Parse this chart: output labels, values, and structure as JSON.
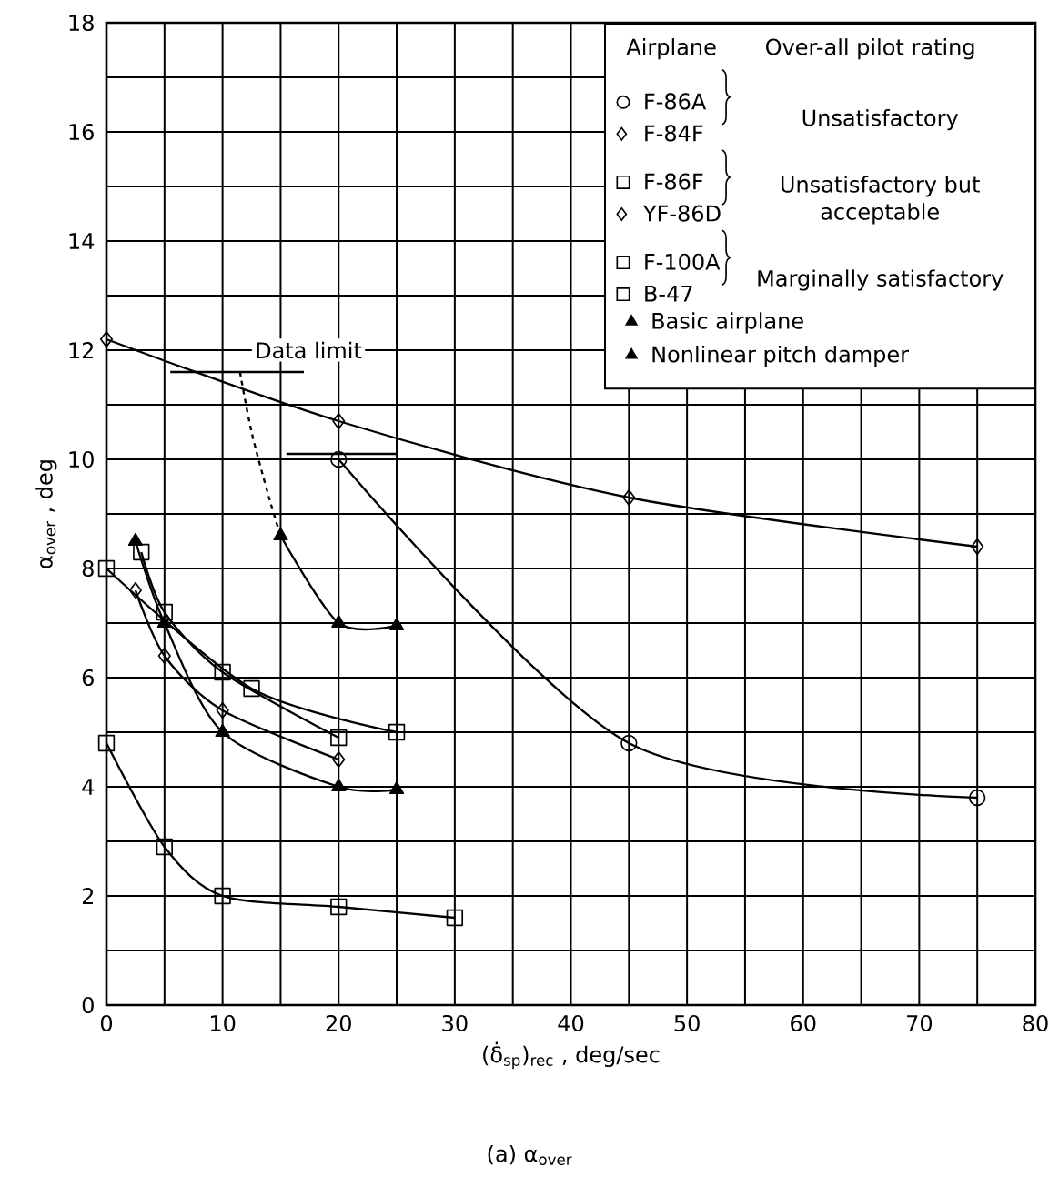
{
  "chart_data": {
    "type": "line",
    "xlabel": "(δ̇$_{sp}$)$_{rec}$ , deg/sec",
    "ylabel": "α$_{over}$ , deg",
    "legend_title": "Airplane",
    "xlim": [
      0,
      80
    ],
    "ylim": [
      0,
      18
    ],
    "xticks": [
      0,
      {
        "value": 5,
        "label": null
      },
      10,
      {
        "value": 15,
        "label": null
      },
      20,
      {
        "value": 25,
        "label": null
      },
      30,
      {
        "value": 35,
        "label": null
      },
      40,
      {
        "value": 45,
        "label": null
      },
      50,
      {
        "value": 55,
        "label": null
      },
      60,
      {
        "value": 65,
        "label": null
      },
      70,
      {
        "value": 75,
        "label": null
      },
      80
    ],
    "yticks": [
      0,
      {
        "value": 1,
        "label": null
      },
      2,
      {
        "value": 3,
        "label": null
      },
      4,
      {
        "value": 5,
        "label": null
      },
      6,
      {
        "value": 7,
        "label": null
      },
      8,
      {
        "value": 9,
        "label": null
      },
      10,
      {
        "value": 11,
        "label": null
      },
      12,
      {
        "value": 13,
        "label": null
      },
      14,
      {
        "value": 15,
        "label": null
      },
      16,
      {
        "value": 17,
        "label": null
      },
      18
    ],
    "grid": true,
    "legend": "top right",
    "series": [
      {
        "name": "F-86A",
        "marker": "circle",
        "color": "#000000",
        "x": [
          20,
          45,
          75
        ],
        "values": [
          10.0,
          4.8,
          3.8
        ]
      },
      {
        "name": "F-84F",
        "marker": "diamond",
        "color": "#000000",
        "x": [
          0,
          20,
          45,
          75
        ],
        "values": [
          12.2,
          10.7,
          9.3,
          8.4
        ]
      },
      {
        "name": "F-86F",
        "marker": "square",
        "color": "#000000",
        "x": [
          3,
          5,
          10,
          20
        ],
        "values": [
          8.3,
          7.2,
          6.1,
          4.9
        ]
      },
      {
        "name": "YF-86D",
        "marker": "diamond",
        "color": "#000000",
        "x": [
          2.5,
          5,
          10,
          20
        ],
        "values": [
          7.6,
          6.4,
          5.4,
          4.5
        ]
      },
      {
        "name": "F-100A",
        "marker": "square",
        "color": "#000000",
        "x": [
          0,
          12.5,
          25
        ],
        "values": [
          8.0,
          5.8,
          5.0
        ]
      },
      {
        "name": "B-47",
        "marker": "square",
        "color": "#000000",
        "x": [
          0,
          5,
          10,
          20,
          30
        ],
        "values": [
          4.8,
          2.9,
          2.0,
          1.8,
          1.6
        ]
      },
      {
        "name": "Basic airplane",
        "marker": "triangle",
        "color": "#000000",
        "x": [
          15,
          20,
          25
        ],
        "values": [
          8.6,
          7.0,
          6.95
        ]
      },
      {
        "name": "Nonlinear pitch damper",
        "marker": "triangle",
        "color": "#000000",
        "x": [
          2.5,
          5,
          10,
          20,
          25
        ],
        "values": [
          8.5,
          7.0,
          5.0,
          4.0,
          3.95
        ]
      },
      {
        "marker": "none",
        "line_style": "dashed",
        "color": "#000000",
        "x": [
          11.5,
          12.5,
          14,
          15
        ],
        "values": [
          11.6,
          10.5,
          9.3,
          8.6
        ]
      },
      {
        "marker": "none",
        "color": "#000000",
        "x": [
          5.5,
          17
        ],
        "values": [
          11.6,
          11.6
        ]
      },
      {
        "marker": "none",
        "color": "#000000",
        "x": [
          15.5,
          25
        ],
        "values": [
          10.1,
          10.1
        ]
      }
    ],
    "annotations": [
      "Over-all pilot rating",
      "Unsatisfactory",
      "Unsatisfactory but acceptable",
      "Marginally satisfactory",
      "Data limit",
      "(a) α$_{over}$"
    ]
  }
}
